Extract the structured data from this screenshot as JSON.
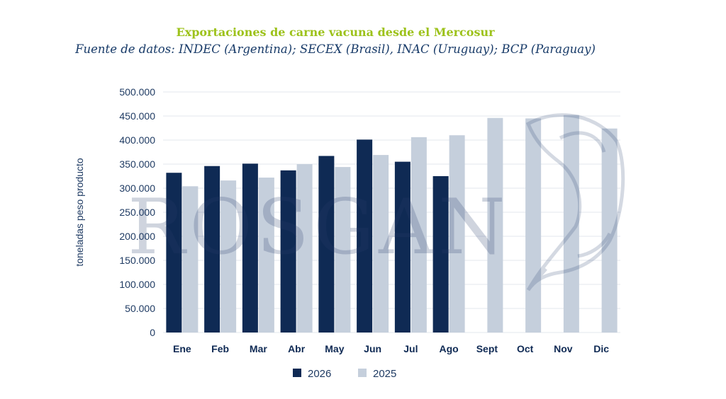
{
  "chart_data": {
    "type": "bar",
    "title": "Exportaciones de carne vacuna desde el Mercosur",
    "subtitle": "Fuente de datos: INDEC (Argentina); SECEX (Brasil), INAC (Uruguay); BCP (Paraguay)",
    "xlabel": "",
    "ylabel": "toneladas peso producto",
    "ylim": [
      0,
      500000
    ],
    "yticks": [
      0,
      50000,
      100000,
      150000,
      200000,
      250000,
      300000,
      350000,
      400000,
      450000,
      500000
    ],
    "ytick_labels": [
      "0",
      "50.000",
      "100.000",
      "150.000",
      "200.000",
      "250.000",
      "300.000",
      "350.000",
      "400.000",
      "450.000",
      "500.000"
    ],
    "categories": [
      "Ene",
      "Feb",
      "Mar",
      "Abr",
      "May",
      "Jun",
      "Jul",
      "Ago",
      "Sept",
      "Oct",
      "Nov",
      "Dic"
    ],
    "series": [
      {
        "name": "2026",
        "color": "#0f2a54",
        "values": [
          332000,
          346000,
          351000,
          337000,
          367000,
          401000,
          355000,
          325000,
          null,
          null,
          null,
          null
        ]
      },
      {
        "name": "2025",
        "color": "#c5cfdc",
        "values": [
          304000,
          316000,
          322000,
          350000,
          344000,
          369000,
          406000,
          410000,
          446000,
          445000,
          452000,
          424000
        ]
      }
    ],
    "grid": true,
    "legend": "bottom-center",
    "watermark": "ROSGAN"
  }
}
